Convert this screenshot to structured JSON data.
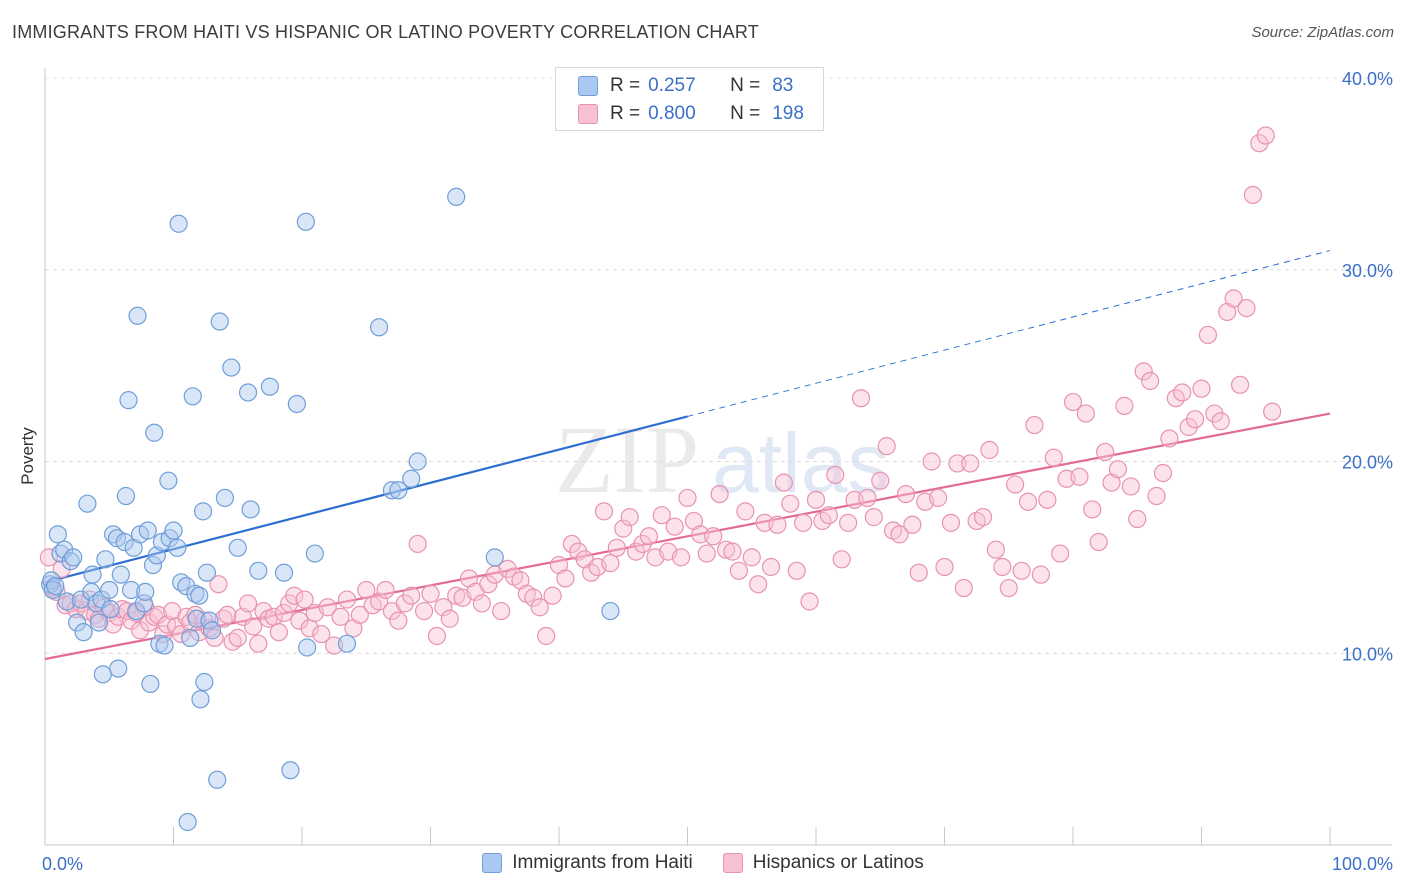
{
  "title": "IMMIGRANTS FROM HAITI VS HISPANIC OR LATINO POVERTY CORRELATION CHART",
  "source": "Source: ZipAtlas.com",
  "watermark": {
    "zip": "ZIP",
    "atlas": "atlas"
  },
  "legend": {
    "rows": [
      {
        "r_label": "R =",
        "r_value": "0.257",
        "n_label": "N =",
        "n_value": "83"
      },
      {
        "r_label": "R =",
        "r_value": "0.800",
        "n_label": "N =",
        "n_value": "198"
      }
    ]
  },
  "chart_data": {
    "type": "scatter",
    "ylabel": "Poverty",
    "xlim": [
      0,
      100
    ],
    "ylim": [
      0,
      40
    ],
    "x_tick_labels": [
      "0.0%",
      "100.0%"
    ],
    "y_tick_labels": [
      "10.0%",
      "20.0%",
      "30.0%",
      "40.0%"
    ],
    "y_ticks": [
      10,
      20,
      30,
      40
    ],
    "grid": "horizontal dashed",
    "legend_position": "top-center",
    "series": [
      {
        "name": "Immigrants from Haiti",
        "color": "#6f9fd8",
        "fill": "#aac8f0",
        "trend": {
          "x0": 0,
          "y0": 13.7,
          "x1": 100,
          "y1": 31.0,
          "solid_until_x": 50
        },
        "points": [
          [
            0.4,
            13.6
          ],
          [
            0.5,
            13.8
          ],
          [
            0.6,
            13.3
          ],
          [
            0.8,
            13.5
          ],
          [
            1.0,
            16.2
          ],
          [
            1.2,
            15.2
          ],
          [
            1.5,
            15.4
          ],
          [
            1.7,
            12.7
          ],
          [
            2.0,
            14.8
          ],
          [
            2.2,
            15.0
          ],
          [
            2.5,
            11.6
          ],
          [
            2.8,
            12.8
          ],
          [
            3.0,
            11.1
          ],
          [
            3.3,
            17.8
          ],
          [
            3.6,
            13.2
          ],
          [
            3.7,
            14.1
          ],
          [
            4.0,
            12.6
          ],
          [
            4.2,
            11.6
          ],
          [
            4.4,
            12.8
          ],
          [
            4.5,
            8.9
          ],
          [
            4.7,
            14.9
          ],
          [
            5.0,
            13.3
          ],
          [
            5.1,
            12.3
          ],
          [
            5.3,
            16.2
          ],
          [
            5.6,
            16.0
          ],
          [
            5.7,
            9.2
          ],
          [
            5.9,
            14.1
          ],
          [
            6.2,
            15.8
          ],
          [
            6.3,
            18.2
          ],
          [
            6.5,
            23.2
          ],
          [
            6.7,
            13.3
          ],
          [
            6.9,
            15.5
          ],
          [
            7.1,
            12.2
          ],
          [
            7.2,
            27.6
          ],
          [
            7.4,
            16.2
          ],
          [
            7.7,
            12.6
          ],
          [
            7.8,
            13.2
          ],
          [
            8.0,
            16.4
          ],
          [
            8.2,
            8.4
          ],
          [
            8.4,
            14.6
          ],
          [
            8.5,
            21.5
          ],
          [
            8.7,
            15.1
          ],
          [
            8.9,
            10.5
          ],
          [
            9.1,
            15.8
          ],
          [
            9.3,
            10.4
          ],
          [
            9.6,
            19.0
          ],
          [
            9.7,
            16.0
          ],
          [
            10.0,
            16.4
          ],
          [
            10.3,
            15.5
          ],
          [
            10.4,
            32.4
          ],
          [
            10.6,
            13.7
          ],
          [
            11.0,
            13.5
          ],
          [
            11.1,
            1.2
          ],
          [
            11.3,
            10.8
          ],
          [
            11.5,
            23.4
          ],
          [
            11.7,
            13.1
          ],
          [
            11.8,
            11.8
          ],
          [
            12.0,
            13.0
          ],
          [
            12.1,
            7.6
          ],
          [
            12.3,
            17.4
          ],
          [
            12.4,
            8.5
          ],
          [
            12.6,
            14.2
          ],
          [
            12.8,
            11.7
          ],
          [
            13.0,
            11.2
          ],
          [
            13.4,
            3.4
          ],
          [
            13.6,
            27.3
          ],
          [
            14.0,
            18.1
          ],
          [
            14.5,
            24.9
          ],
          [
            15.0,
            15.5
          ],
          [
            15.8,
            23.6
          ],
          [
            16.0,
            17.5
          ],
          [
            16.6,
            14.3
          ],
          [
            17.5,
            23.9
          ],
          [
            18.6,
            14.2
          ],
          [
            19.1,
            3.9
          ],
          [
            19.6,
            23.0
          ],
          [
            20.3,
            32.5
          ],
          [
            20.4,
            10.3
          ],
          [
            21.0,
            15.2
          ],
          [
            23.5,
            10.5
          ],
          [
            26.0,
            27.0
          ],
          [
            27.0,
            18.5
          ],
          [
            27.5,
            18.5
          ],
          [
            28.5,
            19.1
          ],
          [
            29.0,
            20.0
          ],
          [
            32.0,
            33.8
          ],
          [
            35.0,
            15.0
          ],
          [
            44.0,
            12.2
          ]
        ]
      },
      {
        "name": "Hispanics or Latinos",
        "color": "#e892b1",
        "fill": "#f8c0d3",
        "trend": {
          "x0": 0,
          "y0": 9.7,
          "x1": 100,
          "y1": 22.5,
          "solid_until_x": 100
        },
        "points": [
          [
            0.3,
            15.0
          ],
          [
            0.6,
            13.4
          ],
          [
            0.9,
            13.2
          ],
          [
            1.3,
            14.4
          ],
          [
            1.6,
            12.5
          ],
          [
            2.0,
            12.6
          ],
          [
            2.4,
            12.3
          ],
          [
            2.8,
            12.6
          ],
          [
            3.2,
            12.2
          ],
          [
            3.5,
            12.8
          ],
          [
            3.9,
            12.0
          ],
          [
            4.2,
            11.8
          ],
          [
            4.6,
            12.4
          ],
          [
            5.0,
            12.1
          ],
          [
            5.3,
            11.5
          ],
          [
            5.7,
            11.9
          ],
          [
            6.0,
            12.3
          ],
          [
            6.4,
            12.2
          ],
          [
            6.7,
            11.7
          ],
          [
            7.1,
            12.1
          ],
          [
            7.4,
            11.2
          ],
          [
            7.8,
            12.4
          ],
          [
            8.1,
            11.6
          ],
          [
            8.5,
            11.9
          ],
          [
            8.8,
            12.0
          ],
          [
            9.2,
            11.0
          ],
          [
            9.5,
            11.5
          ],
          [
            9.9,
            12.2
          ],
          [
            10.2,
            11.4
          ],
          [
            10.6,
            11.0
          ],
          [
            11.0,
            11.9
          ],
          [
            11.3,
            11.6
          ],
          [
            11.7,
            12.0
          ],
          [
            12.0,
            11.1
          ],
          [
            12.4,
            11.7
          ],
          [
            12.8,
            11.3
          ],
          [
            13.2,
            10.8
          ],
          [
            13.5,
            13.6
          ],
          [
            13.9,
            11.8
          ],
          [
            14.2,
            12.0
          ],
          [
            14.6,
            10.6
          ],
          [
            15.0,
            10.8
          ],
          [
            15.4,
            11.9
          ],
          [
            15.8,
            12.6
          ],
          [
            16.2,
            11.4
          ],
          [
            16.6,
            10.5
          ],
          [
            17.0,
            12.2
          ],
          [
            17.4,
            11.8
          ],
          [
            17.8,
            11.9
          ],
          [
            18.2,
            11.1
          ],
          [
            18.6,
            12.1
          ],
          [
            19.0,
            12.6
          ],
          [
            19.4,
            13.0
          ],
          [
            19.8,
            11.7
          ],
          [
            20.2,
            12.8
          ],
          [
            20.6,
            11.3
          ],
          [
            21.0,
            12.1
          ],
          [
            21.5,
            11.0
          ],
          [
            22.0,
            12.4
          ],
          [
            22.5,
            10.4
          ],
          [
            23.0,
            11.9
          ],
          [
            23.5,
            12.8
          ],
          [
            24.0,
            11.3
          ],
          [
            24.5,
            12.0
          ],
          [
            25.0,
            13.3
          ],
          [
            25.5,
            12.5
          ],
          [
            26.0,
            12.7
          ],
          [
            26.5,
            13.3
          ],
          [
            27.0,
            12.2
          ],
          [
            27.5,
            11.7
          ],
          [
            28.0,
            12.6
          ],
          [
            28.5,
            13.0
          ],
          [
            29.0,
            15.7
          ],
          [
            29.5,
            12.2
          ],
          [
            30.0,
            13.1
          ],
          [
            30.5,
            10.9
          ],
          [
            31.0,
            12.4
          ],
          [
            31.5,
            11.8
          ],
          [
            32.0,
            13.0
          ],
          [
            32.5,
            12.9
          ],
          [
            33.0,
            13.9
          ],
          [
            33.5,
            13.2
          ],
          [
            34.0,
            12.6
          ],
          [
            34.5,
            13.6
          ],
          [
            35.0,
            14.1
          ],
          [
            35.5,
            12.2
          ],
          [
            36.0,
            14.4
          ],
          [
            36.5,
            14.0
          ],
          [
            37.0,
            13.8
          ],
          [
            37.5,
            13.1
          ],
          [
            38.0,
            12.9
          ],
          [
            38.5,
            12.4
          ],
          [
            39.0,
            10.9
          ],
          [
            39.5,
            13.0
          ],
          [
            40.0,
            14.6
          ],
          [
            40.5,
            13.9
          ],
          [
            41.0,
            15.7
          ],
          [
            41.5,
            15.3
          ],
          [
            42.0,
            14.9
          ],
          [
            42.5,
            14.2
          ],
          [
            43.0,
            14.5
          ],
          [
            43.5,
            17.4
          ],
          [
            44.0,
            14.7
          ],
          [
            44.5,
            15.5
          ],
          [
            45.0,
            16.5
          ],
          [
            45.5,
            17.1
          ],
          [
            46.0,
            15.3
          ],
          [
            46.5,
            15.7
          ],
          [
            47.0,
            16.1
          ],
          [
            47.5,
            15.0
          ],
          [
            48.0,
            17.2
          ],
          [
            48.5,
            15.3
          ],
          [
            49.0,
            16.6
          ],
          [
            49.5,
            15.0
          ],
          [
            50.0,
            18.1
          ],
          [
            50.5,
            16.9
          ],
          [
            51.0,
            16.2
          ],
          [
            51.5,
            15.2
          ],
          [
            52.0,
            16.1
          ],
          [
            52.5,
            18.3
          ],
          [
            53.0,
            15.4
          ],
          [
            53.5,
            15.3
          ],
          [
            54.0,
            14.3
          ],
          [
            54.5,
            17.4
          ],
          [
            55.0,
            15.0
          ],
          [
            55.5,
            13.6
          ],
          [
            56.0,
            16.8
          ],
          [
            56.5,
            14.5
          ],
          [
            57.0,
            16.7
          ],
          [
            57.5,
            18.9
          ],
          [
            58.0,
            17.8
          ],
          [
            58.5,
            14.3
          ],
          [
            59.0,
            16.8
          ],
          [
            59.5,
            12.7
          ],
          [
            60.0,
            18.0
          ],
          [
            60.5,
            16.9
          ],
          [
            61.0,
            17.2
          ],
          [
            61.5,
            19.3
          ],
          [
            62.0,
            14.9
          ],
          [
            62.5,
            16.8
          ],
          [
            63.0,
            18.0
          ],
          [
            63.5,
            23.3
          ],
          [
            64.0,
            18.1
          ],
          [
            64.5,
            17.1
          ],
          [
            65.0,
            19.0
          ],
          [
            65.5,
            20.8
          ],
          [
            66.0,
            16.4
          ],
          [
            66.5,
            16.2
          ],
          [
            67.0,
            18.3
          ],
          [
            67.5,
            16.7
          ],
          [
            68.0,
            14.2
          ],
          [
            68.5,
            17.9
          ],
          [
            69.0,
            20.0
          ],
          [
            69.5,
            18.1
          ],
          [
            70.0,
            14.5
          ],
          [
            70.5,
            16.8
          ],
          [
            71.0,
            19.9
          ],
          [
            71.5,
            13.4
          ],
          [
            72.0,
            19.9
          ],
          [
            72.5,
            16.9
          ],
          [
            73.0,
            17.1
          ],
          [
            73.5,
            20.6
          ],
          [
            74.0,
            15.4
          ],
          [
            74.5,
            14.5
          ],
          [
            75.0,
            13.4
          ],
          [
            75.5,
            18.8
          ],
          [
            76.0,
            14.3
          ],
          [
            76.5,
            17.9
          ],
          [
            77.0,
            21.9
          ],
          [
            77.5,
            14.1
          ],
          [
            78.0,
            18.0
          ],
          [
            78.5,
            20.2
          ],
          [
            79.0,
            15.2
          ],
          [
            79.5,
            19.1
          ],
          [
            80.0,
            23.1
          ],
          [
            80.5,
            19.2
          ],
          [
            81.0,
            22.5
          ],
          [
            81.5,
            17.5
          ],
          [
            82.0,
            15.8
          ],
          [
            82.5,
            20.5
          ],
          [
            83.0,
            18.9
          ],
          [
            83.5,
            19.6
          ],
          [
            84.0,
            22.9
          ],
          [
            84.5,
            18.7
          ],
          [
            85.0,
            17.0
          ],
          [
            85.5,
            24.7
          ],
          [
            86.0,
            24.2
          ],
          [
            86.5,
            18.2
          ],
          [
            87.0,
            19.4
          ],
          [
            87.5,
            21.2
          ],
          [
            88.0,
            23.3
          ],
          [
            88.5,
            23.6
          ],
          [
            89.0,
            21.8
          ],
          [
            89.5,
            22.2
          ],
          [
            90.0,
            23.8
          ],
          [
            90.5,
            26.6
          ],
          [
            91.0,
            22.5
          ],
          [
            91.5,
            22.1
          ],
          [
            92.0,
            27.8
          ],
          [
            92.5,
            28.5
          ],
          [
            93.0,
            24.0
          ],
          [
            93.5,
            28.0
          ],
          [
            94.0,
            33.9
          ],
          [
            94.5,
            36.6
          ],
          [
            95.0,
            37.0
          ],
          [
            95.5,
            22.6
          ]
        ]
      }
    ]
  }
}
